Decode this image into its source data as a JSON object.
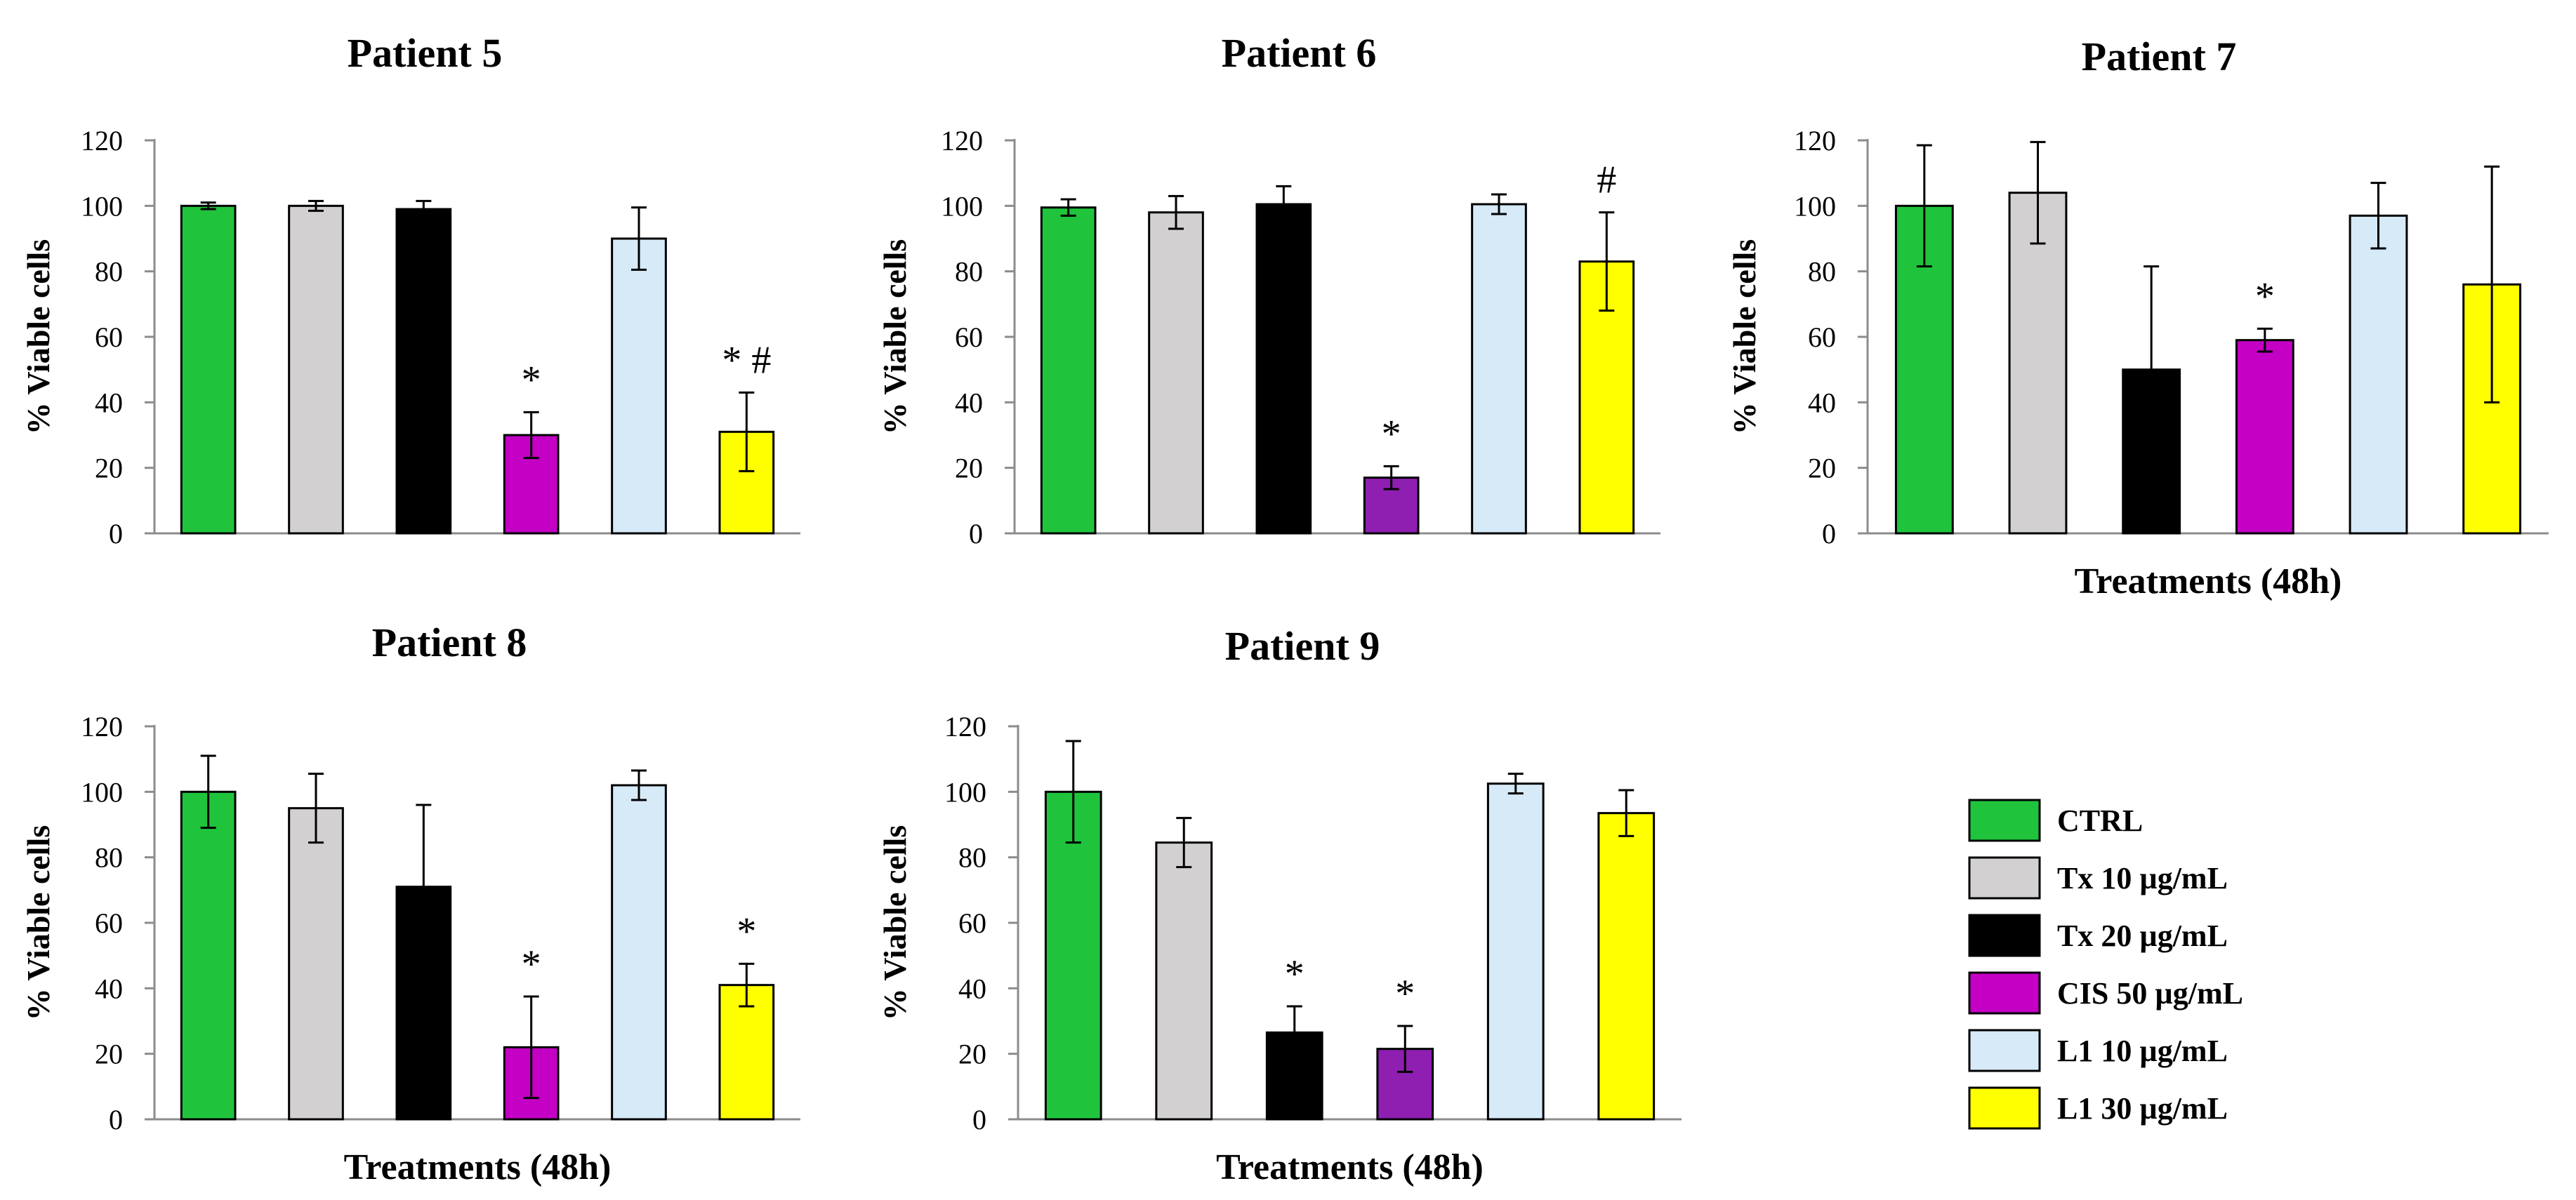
{
  "figure": {
    "colors": {
      "CTRL": "#20c43c",
      "Tx 10 µg/mL": "#d3d0d1",
      "Tx 20 µg/mL": "#000000",
      "CIS 50 µg/mL": "#c400c4",
      "CIS 50 µg/mL (alt)": "#8e1fb0",
      "L1 10 µg/mL": "#d6eaf8",
      "L1 30 µg/mL": "#ffff00"
    },
    "legend": [
      {
        "label": "CTRL",
        "color": "#20c43c"
      },
      {
        "label": "Tx 10 µg/mL",
        "color": "#d3d0d1"
      },
      {
        "label": "Tx 20 µg/mL",
        "color": "#000000"
      },
      {
        "label": "CIS 50 µg/mL",
        "color": "#c400c4"
      },
      {
        "label": "L1 10 µg/mL",
        "color": "#d6eaf8"
      },
      {
        "label": "L1 30 µg/mL",
        "color": "#ffff00"
      }
    ]
  },
  "chart_data": [
    {
      "type": "bar",
      "title": "Patient 5",
      "ylabel": "% Viable cells",
      "xlabel": "",
      "ylim": [
        0,
        120
      ],
      "yticks": [
        "0",
        "20",
        "40",
        "60",
        "80",
        "100",
        "120"
      ],
      "categories": [
        "CTRL",
        "Tx 10 µg/mL",
        "Tx 20 µg/mL",
        "CIS 50 µg/mL",
        "L1 10 µg/mL",
        "L1 30 µg/mL"
      ],
      "values": [
        100,
        100,
        99,
        30,
        90,
        31
      ],
      "errors": [
        1,
        1.5,
        2.5,
        7,
        9.5,
        12
      ],
      "colors": [
        "#20c43c",
        "#d3d0d1",
        "#000000",
        "#c400c4",
        "#d6eaf8",
        "#ffff00"
      ],
      "annotations": [
        "",
        "",
        "",
        "*",
        "",
        "* #"
      ]
    },
    {
      "type": "bar",
      "title": "Patient 6",
      "ylabel": "% Viable cells",
      "xlabel": "",
      "ylim": [
        0,
        120
      ],
      "yticks": [
        "0",
        "20",
        "40",
        "60",
        "80",
        "100",
        "120"
      ],
      "categories": [
        "CTRL",
        "Tx 10 µg/mL",
        "Tx 20 µg/mL",
        "CIS 50 µg/mL",
        "L1 10 µg/mL",
        "L1 30 µg/mL"
      ],
      "values": [
        99.5,
        98,
        100.5,
        17,
        100.5,
        83
      ],
      "errors": [
        2.5,
        5,
        5.5,
        3.5,
        3,
        15
      ],
      "colors": [
        "#20c43c",
        "#d3d0d1",
        "#000000",
        "#8e1fb0",
        "#d6eaf8",
        "#ffff00"
      ],
      "annotations": [
        "",
        "",
        "",
        "*",
        "",
        "#"
      ]
    },
    {
      "type": "bar",
      "title": "Patient 7",
      "ylabel": "% Viable cells",
      "xlabel": "Treatments (48h)",
      "ylim": [
        0,
        120
      ],
      "yticks": [
        "0",
        "20",
        "40",
        "60",
        "80",
        "100",
        "120"
      ],
      "categories": [
        "CTRL",
        "Tx 10 µg/mL",
        "Tx 20 µg/mL",
        "CIS 50 µg/mL",
        "L1 10 µg/mL",
        "L1 30 µg/mL"
      ],
      "values": [
        100,
        104,
        50,
        59,
        97,
        76
      ],
      "errors": [
        18.5,
        15.5,
        31.5,
        3.5,
        10,
        36
      ],
      "colors": [
        "#20c43c",
        "#d3d0d1",
        "#000000",
        "#c400c4",
        "#d6eaf8",
        "#ffff00"
      ],
      "annotations": [
        "",
        "",
        "",
        "*",
        "",
        ""
      ]
    },
    {
      "type": "bar",
      "title": "Patient 8",
      "ylabel": "% Viable cells",
      "xlabel": "Treatments (48h)",
      "ylim": [
        0,
        120
      ],
      "yticks": [
        "0",
        "20",
        "40",
        "60",
        "80",
        "100",
        "120"
      ],
      "categories": [
        "CTRL",
        "Tx 10 µg/mL",
        "Tx 20 µg/mL",
        "CIS 50 µg/mL",
        "L1 10 µg/mL",
        "L1 30 µg/mL"
      ],
      "values": [
        100,
        95,
        71,
        22,
        102,
        41
      ],
      "errors": [
        11,
        10.5,
        25,
        15.5,
        4.5,
        6.5
      ],
      "colors": [
        "#20c43c",
        "#d3d0d1",
        "#000000",
        "#c400c4",
        "#d6eaf8",
        "#ffff00"
      ],
      "annotations": [
        "",
        "",
        "",
        "*",
        "",
        "*"
      ]
    },
    {
      "type": "bar",
      "title": "Patient 9",
      "ylabel": "% Viable cells",
      "xlabel": "Treatments (48h)",
      "ylim": [
        0,
        120
      ],
      "yticks": [
        "0",
        "20",
        "40",
        "60",
        "80",
        "100",
        "120"
      ],
      "categories": [
        "CTRL",
        "Tx 10 µg/mL",
        "Tx 20 µg/mL",
        "CIS 50 µg/mL",
        "L1 10 µg/mL",
        "L1 30 µg/mL"
      ],
      "values": [
        100,
        84.5,
        26.5,
        21.5,
        102.5,
        93.5
      ],
      "errors": [
        15.5,
        7.5,
        8,
        7,
        3,
        7
      ],
      "colors": [
        "#20c43c",
        "#d3d0d1",
        "#000000",
        "#8e1fb0",
        "#d6eaf8",
        "#ffff00"
      ],
      "annotations": [
        "",
        "",
        "*",
        "*",
        "",
        ""
      ]
    }
  ]
}
